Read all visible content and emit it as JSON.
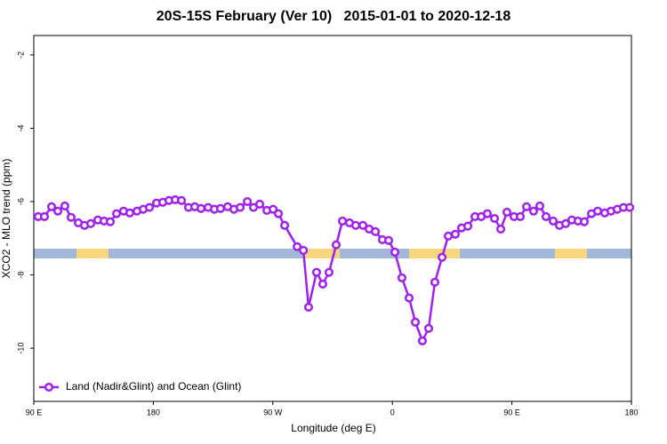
{
  "chart_data": {
    "type": "line",
    "title": "20S-15S February (Ver 10)   2015-01-01 to 2020-12-18",
    "x_label": "Longitude (deg E)",
    "y_label": "XCO2 - MLO trend (ppm)",
    "xlim": [
      90,
      540
    ],
    "ylim": [
      -1.47,
      -11.45
    ],
    "xticks": [
      {
        "value": 90,
        "label": "90 E"
      },
      {
        "value": 180,
        "label": "180"
      },
      {
        "value": 270,
        "label": "90 W"
      },
      {
        "value": 360,
        "label": "0"
      },
      {
        "value": 450,
        "label": "90 E"
      },
      {
        "value": 540,
        "label": "180"
      }
    ],
    "yticks": [
      -2,
      -4,
      -6,
      -8,
      -10
    ],
    "legend_position": "bottom-left",
    "x": [
      93.3,
      98.0,
      103.4,
      108.1,
      113.4,
      118.1,
      123.5,
      128.2,
      132.9,
      138.2,
      142.9,
      147.6,
      152.3,
      157.6,
      162.3,
      167.7,
      172.4,
      177.1,
      182.4,
      187.1,
      191.8,
      196.5,
      201.2,
      206.5,
      211.2,
      215.9,
      221.3,
      226.0,
      230.6,
      236.0,
      240.7,
      245.4,
      250.8,
      255.4,
      260.1,
      265.5,
      270.2,
      274.2,
      278.9,
      288.3,
      293.0,
      296.9,
      302.9,
      307.6,
      312.3,
      317.7,
      322.4,
      327.7,
      332.4,
      337.8,
      342.5,
      347.2,
      352.5,
      357.2,
      361.9,
      367.2,
      372.6,
      377.3,
      382.6,
      387.3,
      392.0,
      397.4,
      402.1,
      407.4,
      412.1,
      416.8,
      422.2,
      426.9,
      431.5,
      436.9,
      441.6,
      446.3,
      451.6,
      456.3,
      461.0,
      466.3,
      471.0,
      475.7,
      481.1,
      485.8,
      490.5,
      495.1,
      499.8,
      504.5,
      509.9,
      514.6,
      519.9,
      524.6,
      529.3,
      534.0,
      538.7
    ],
    "series": [
      {
        "name": "Land (Nadir&Glint) and Ocean (Glint)",
        "color": "#a020f0",
        "values": [
          -6.41,
          -6.41,
          -6.14,
          -6.26,
          -6.12,
          -6.43,
          -6.58,
          -6.65,
          -6.6,
          -6.5,
          -6.53,
          -6.55,
          -6.33,
          -6.26,
          -6.31,
          -6.26,
          -6.21,
          -6.16,
          -6.04,
          -6.02,
          -5.97,
          -5.95,
          -5.97,
          -6.16,
          -6.14,
          -6.19,
          -6.16,
          -6.21,
          -6.19,
          -6.14,
          -6.21,
          -6.16,
          -6.0,
          -6.16,
          -6.07,
          -6.24,
          -6.21,
          -6.33,
          -6.65,
          -7.23,
          -7.33,
          -8.88,
          -7.93,
          -8.25,
          -7.93,
          -7.18,
          -6.53,
          -6.58,
          -6.65,
          -6.65,
          -6.75,
          -6.82,
          -7.04,
          -7.06,
          -7.38,
          -8.08,
          -8.63,
          -9.29,
          -9.8,
          -9.46,
          -8.2,
          -7.52,
          -6.94,
          -6.89,
          -6.72,
          -6.67,
          -6.41,
          -6.41,
          -6.33,
          -6.46,
          -6.75,
          -6.29,
          -6.41,
          -6.41,
          -6.14,
          -6.26,
          -6.12,
          -6.41,
          -6.53,
          -6.65,
          -6.6,
          -6.5,
          -6.53,
          -6.55,
          -6.33,
          -6.26,
          -6.31,
          -6.26,
          -6.21,
          -6.16,
          -6.16
        ]
      }
    ]
  }
}
